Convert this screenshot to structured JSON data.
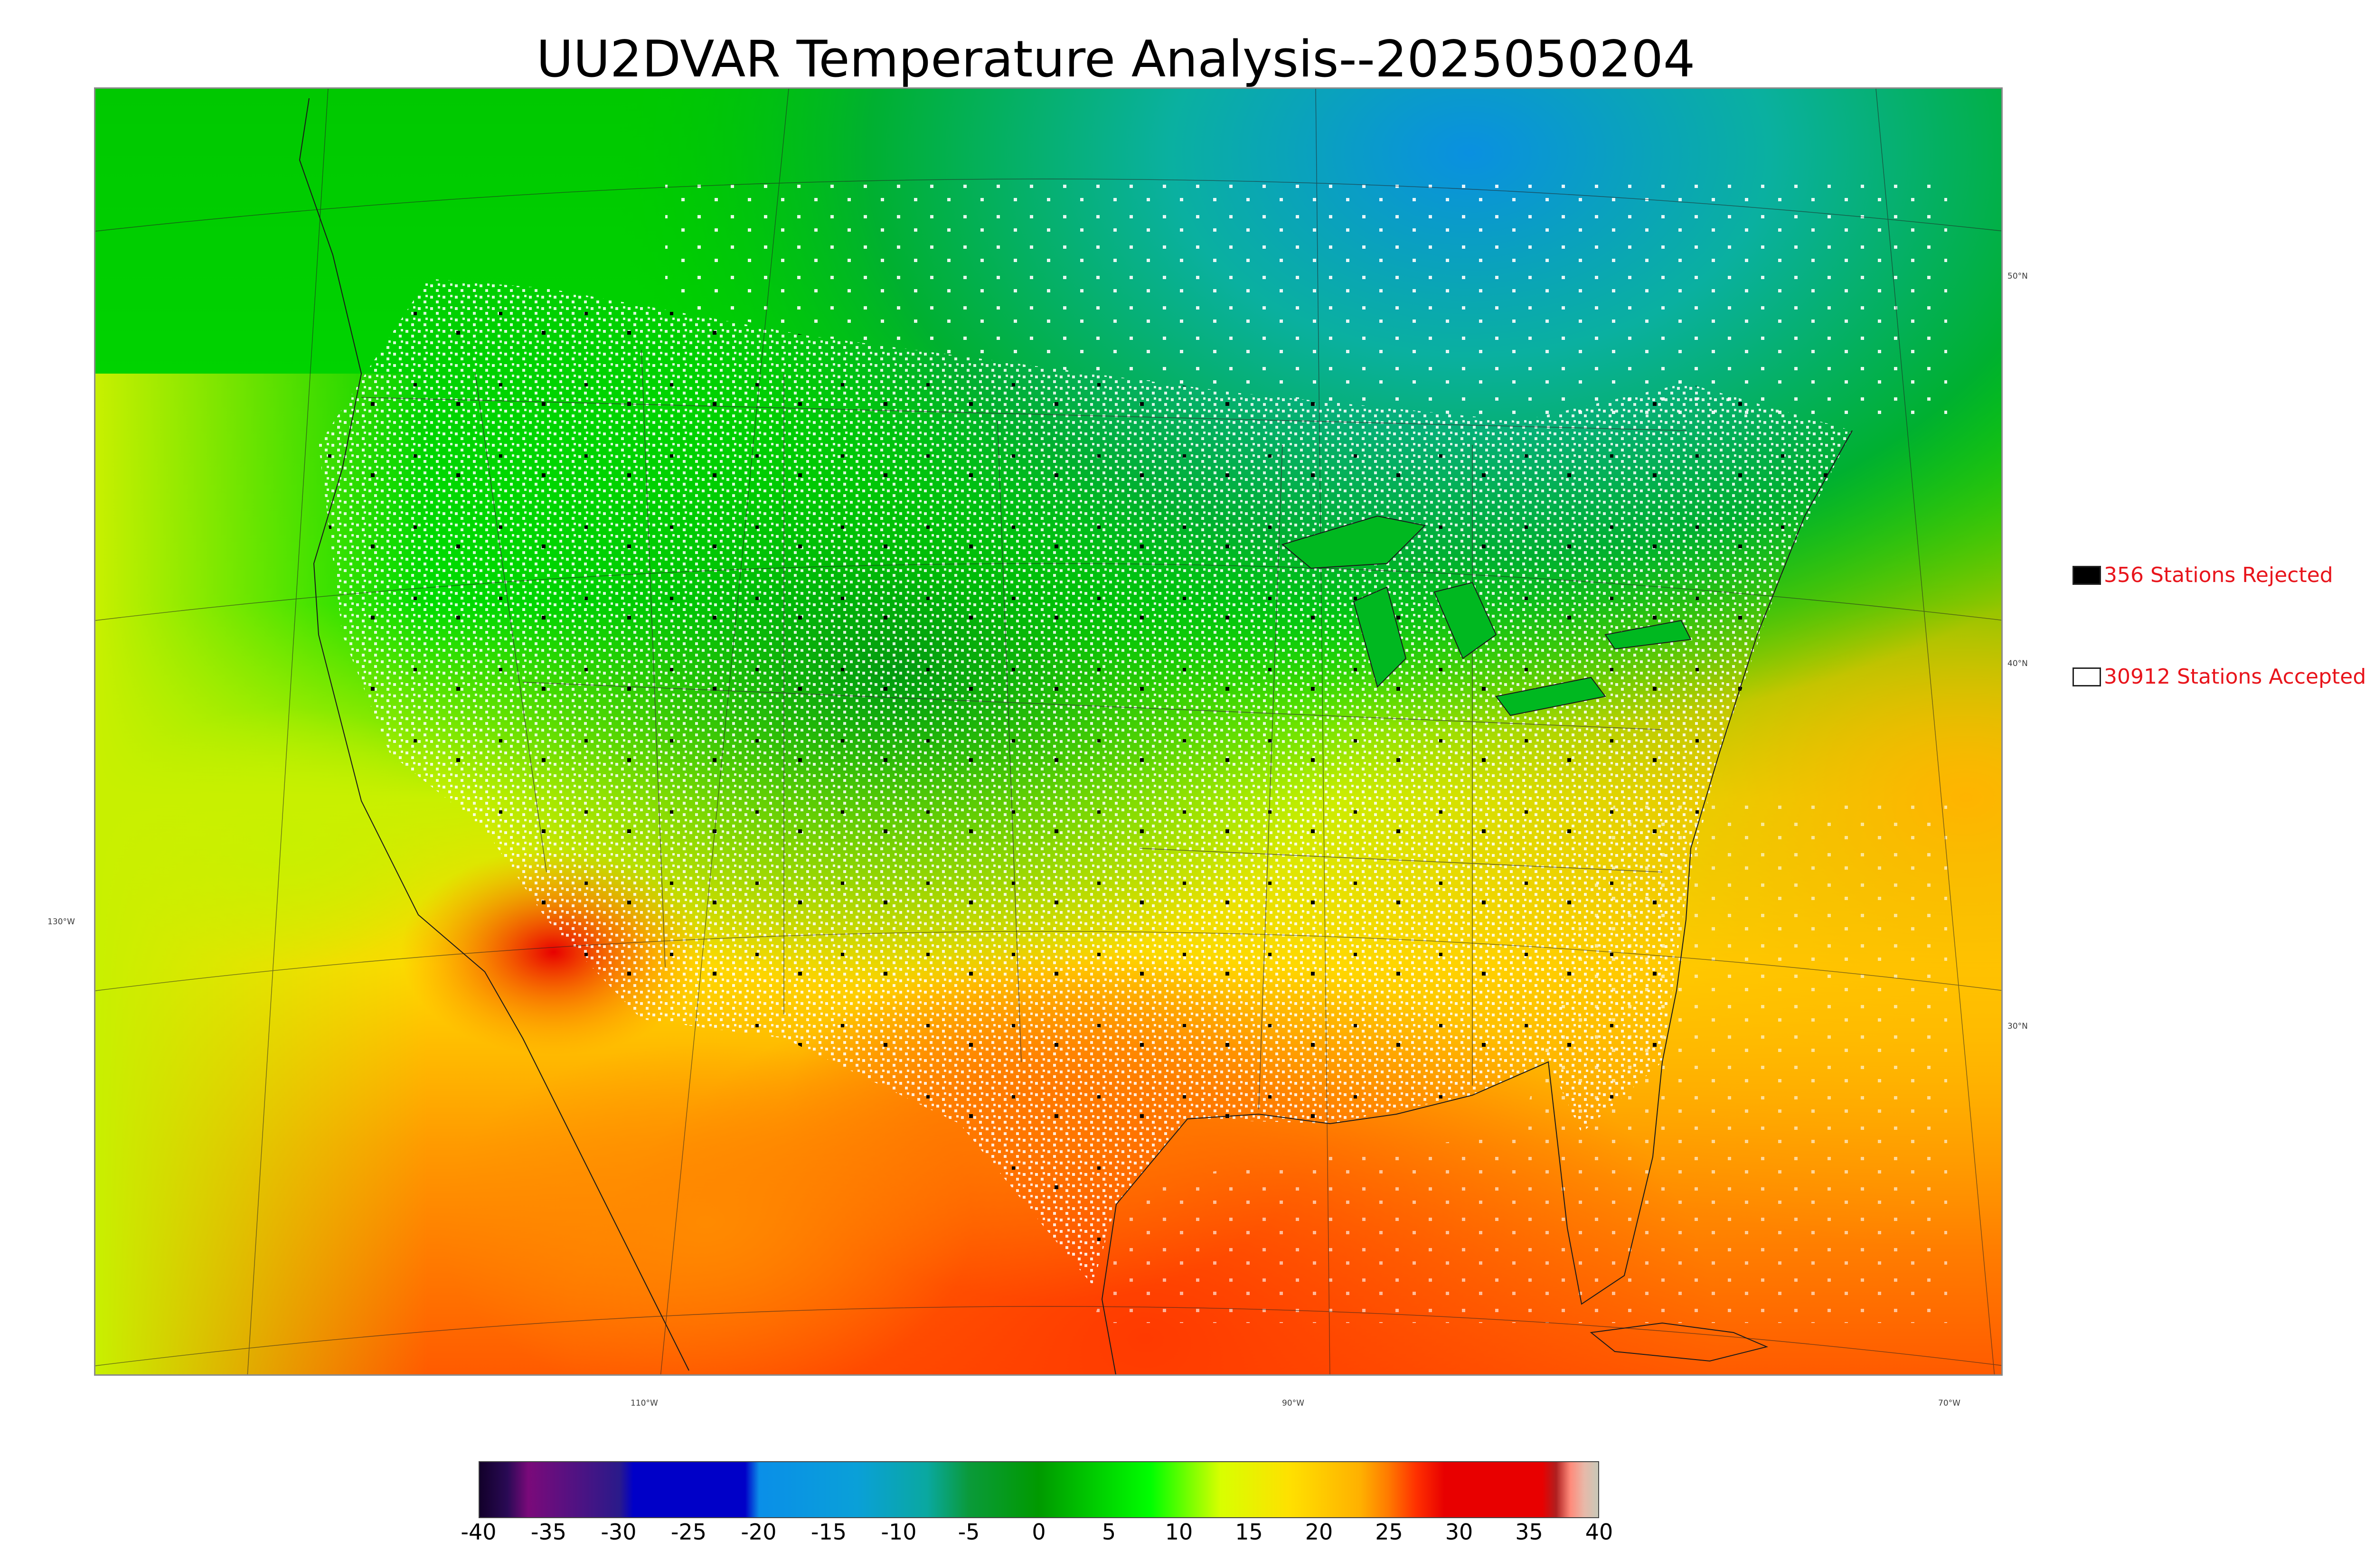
{
  "title": "UU2DVAR Temperature Analysis--2025050204",
  "legend": {
    "rejected_label": "356 Stations Rejected",
    "accepted_label": "30912 Stations Accepted",
    "text_color": "#e8141b"
  },
  "map_labels": {
    "lon": [
      "110°W",
      "90°W",
      "70°W"
    ],
    "lat_right": [
      "50°N",
      "40°N",
      "30°N"
    ],
    "lat_left": [
      "130°W"
    ]
  },
  "colorbar": {
    "ticks": [
      "-40",
      "-35",
      "-30",
      "-25",
      "-20",
      "-15",
      "-10",
      "-5",
      "0",
      "5",
      "10",
      "15",
      "20",
      "25",
      "30",
      "35",
      "40"
    ],
    "range": [
      -40,
      40
    ],
    "stops": [
      {
        "value": -40,
        "color": "#12002a"
      },
      {
        "value": -38,
        "color": "#2a0a55"
      },
      {
        "value": -36.5,
        "color": "#7a0a7a"
      },
      {
        "value": -30,
        "color": "#2a1a8a"
      },
      {
        "value": -29,
        "color": "#0000c8"
      },
      {
        "value": -21,
        "color": "#0000c8"
      },
      {
        "value": -20,
        "color": "#0a8fe8"
      },
      {
        "value": -13,
        "color": "#0aa0d8"
      },
      {
        "value": -8,
        "color": "#0aa8a0"
      },
      {
        "value": -5,
        "color": "#0a9a3a"
      },
      {
        "value": 0,
        "color": "#009a00"
      },
      {
        "value": 8,
        "color": "#00ff00"
      },
      {
        "value": 13,
        "color": "#d8ff00"
      },
      {
        "value": 18,
        "color": "#ffe000"
      },
      {
        "value": 23,
        "color": "#ffb000"
      },
      {
        "value": 25,
        "color": "#ff7a00"
      },
      {
        "value": 27,
        "color": "#ff3000"
      },
      {
        "value": 29,
        "color": "#e80000"
      },
      {
        "value": 36,
        "color": "#e80000"
      },
      {
        "value": 37,
        "color": "#b02020"
      },
      {
        "value": 38,
        "color": "#ff8a7a"
      },
      {
        "value": 39,
        "color": "#e8b8a8"
      },
      {
        "value": 40,
        "color": "#c8c8b8"
      }
    ]
  },
  "colors": {
    "ocean_west": "#c8f000",
    "land_north": "#00c800",
    "canada_cold": "#0aa8d8",
    "warm_south": "#ff8a00",
    "hot_gulf": "#ff4800"
  }
}
